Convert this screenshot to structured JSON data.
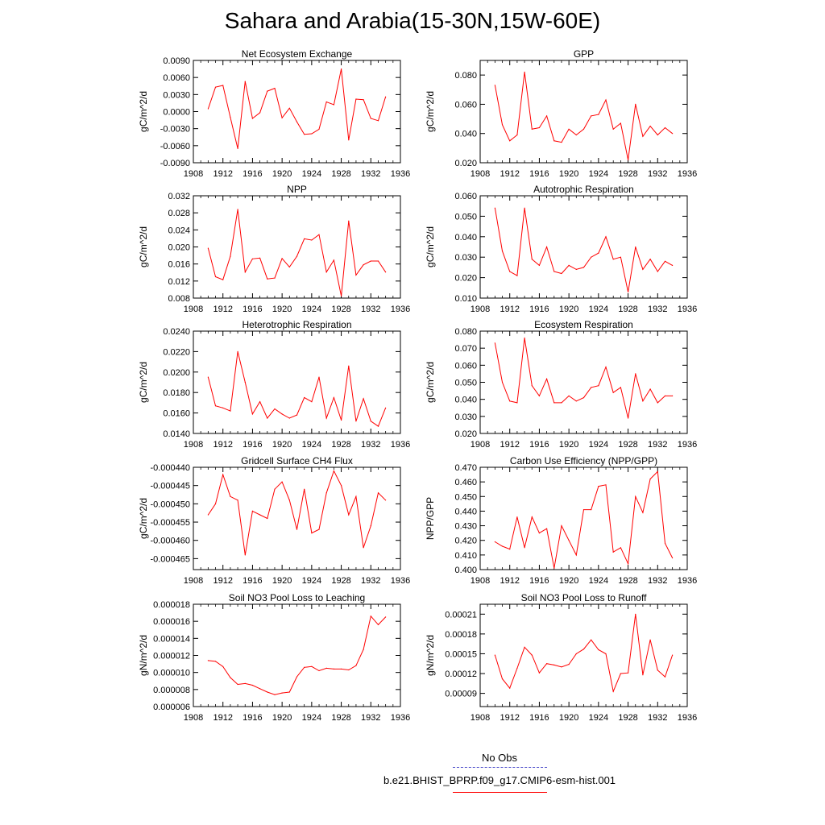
{
  "title": "Sahara and Arabia(15-30N,15W-60E)",
  "legend": {
    "obs_label": "No Obs",
    "model_label": "b.e21.BHIST_BPRP.f09_g17.CMIP6-esm-hist.001",
    "obs_color": "#5555cc",
    "model_color": "#ff0000"
  },
  "chart_data": [
    {
      "type": "line",
      "title": "Net Ecosystem Exchange",
      "ylabel": "gC/m^2/d",
      "xlim": [
        1908,
        1936
      ],
      "xticks": [
        "1908",
        "1912",
        "1916",
        "1920",
        "1924",
        "1928",
        "1932",
        "1936"
      ],
      "ylim": [
        -0.009,
        0.009
      ],
      "yticks": [
        "-0.0090",
        "-0.0060",
        "-0.0030",
        "0.0000",
        "0.0030",
        "0.0060",
        "0.0090"
      ],
      "x": [
        1910,
        1911,
        1912,
        1913,
        1914,
        1915,
        1916,
        1917,
        1918,
        1919,
        1920,
        1921,
        1922,
        1923,
        1924,
        1925,
        1926,
        1927,
        1928,
        1929,
        1930,
        1931,
        1932,
        1933,
        1934
      ],
      "series": [
        {
          "color": "#ff0000",
          "values": [
            0.0005,
            0.0043,
            0.0046,
            -0.001,
            -0.0065,
            0.0053,
            -0.0012,
            -0.0002,
            0.0036,
            0.0041,
            -0.0011,
            0.0006,
            -0.0018,
            -0.004,
            -0.0039,
            -0.0031,
            0.0017,
            0.0012,
            0.0075,
            -0.005,
            0.0022,
            0.0021,
            -0.0012,
            -0.0016,
            0.0026
          ]
        }
      ]
    },
    {
      "type": "line",
      "title": "GPP",
      "ylabel": "gC/m^2/d",
      "xlim": [
        1908,
        1936
      ],
      "xticks": [
        "1908",
        "1912",
        "1916",
        "1920",
        "1924",
        "1928",
        "1932",
        "1936"
      ],
      "ylim": [
        0.02,
        0.09
      ],
      "yticks": [
        "0.020",
        "0.040",
        "0.060",
        "0.080"
      ],
      "x": [
        1910,
        1911,
        1912,
        1913,
        1914,
        1915,
        1916,
        1917,
        1918,
        1919,
        1920,
        1921,
        1922,
        1923,
        1924,
        1925,
        1926,
        1927,
        1928,
        1929,
        1930,
        1931,
        1932,
        1933,
        1934
      ],
      "series": [
        {
          "color": "#ff0000",
          "values": [
            0.073,
            0.046,
            0.035,
            0.039,
            0.082,
            0.043,
            0.044,
            0.052,
            0.035,
            0.034,
            0.043,
            0.039,
            0.043,
            0.052,
            0.053,
            0.063,
            0.043,
            0.047,
            0.022,
            0.06,
            0.038,
            0.045,
            0.039,
            0.044,
            0.04
          ]
        }
      ]
    },
    {
      "type": "line",
      "title": "NPP",
      "ylabel": "gC/m^2/d",
      "xlim": [
        1908,
        1936
      ],
      "xticks": [
        "1908",
        "1912",
        "1916",
        "1920",
        "1924",
        "1928",
        "1932",
        "1936"
      ],
      "ylim": [
        0.008,
        0.032
      ],
      "yticks": [
        "0.008",
        "0.012",
        "0.016",
        "0.020",
        "0.024",
        "0.028",
        "0.032"
      ],
      "x": [
        1910,
        1911,
        1912,
        1913,
        1914,
        1915,
        1916,
        1917,
        1918,
        1919,
        1920,
        1921,
        1922,
        1923,
        1924,
        1925,
        1926,
        1927,
        1928,
        1929,
        1930,
        1931,
        1932,
        1933,
        1934
      ],
      "series": [
        {
          "color": "#ff0000",
          "values": [
            0.0197,
            0.013,
            0.0123,
            0.0178,
            0.0288,
            0.0141,
            0.0172,
            0.0174,
            0.0125,
            0.0127,
            0.0173,
            0.0153,
            0.0178,
            0.0219,
            0.0216,
            0.0229,
            0.0141,
            0.0169,
            0.0085,
            0.0261,
            0.0134,
            0.0158,
            0.0167,
            0.0167,
            0.0141
          ]
        }
      ]
    },
    {
      "type": "line",
      "title": "Autotrophic Respiration",
      "ylabel": "gC/m^2/d",
      "xlim": [
        1908,
        1936
      ],
      "xticks": [
        "1908",
        "1912",
        "1916",
        "1920",
        "1924",
        "1928",
        "1932",
        "1936"
      ],
      "ylim": [
        0.01,
        0.06
      ],
      "yticks": [
        "0.010",
        "0.020",
        "0.030",
        "0.040",
        "0.050",
        "0.060"
      ],
      "x": [
        1910,
        1911,
        1912,
        1913,
        1914,
        1915,
        1916,
        1917,
        1918,
        1919,
        1920,
        1921,
        1922,
        1923,
        1924,
        1925,
        1926,
        1927,
        1928,
        1929,
        1930,
        1931,
        1932,
        1933,
        1934
      ],
      "series": [
        {
          "color": "#ff0000",
          "values": [
            0.054,
            0.033,
            0.023,
            0.021,
            0.054,
            0.029,
            0.026,
            0.035,
            0.023,
            0.022,
            0.026,
            0.024,
            0.025,
            0.03,
            0.032,
            0.04,
            0.029,
            0.03,
            0.013,
            0.035,
            0.024,
            0.029,
            0.023,
            0.028,
            0.026
          ]
        }
      ]
    },
    {
      "type": "line",
      "title": "Heterotrophic Respiration",
      "ylabel": "gC/m^2/d",
      "xlim": [
        1908,
        1936
      ],
      "xticks": [
        "1908",
        "1912",
        "1916",
        "1920",
        "1924",
        "1928",
        "1932",
        "1936"
      ],
      "ylim": [
        0.014,
        0.024
      ],
      "yticks": [
        "0.0140",
        "0.0160",
        "0.0180",
        "0.0200",
        "0.0220",
        "0.0240"
      ],
      "x": [
        1910,
        1911,
        1912,
        1913,
        1914,
        1915,
        1916,
        1917,
        1918,
        1919,
        1920,
        1921,
        1922,
        1923,
        1924,
        1925,
        1926,
        1927,
        1928,
        1929,
        1930,
        1931,
        1932,
        1933,
        1934
      ],
      "series": [
        {
          "color": "#ff0000",
          "values": [
            0.0195,
            0.0167,
            0.0165,
            0.0162,
            0.022,
            0.019,
            0.0159,
            0.0171,
            0.0155,
            0.0164,
            0.0159,
            0.0155,
            0.0158,
            0.0175,
            0.0171,
            0.0195,
            0.0155,
            0.0175,
            0.0153,
            0.0206,
            0.0152,
            0.0174,
            0.0152,
            0.0147,
            0.0165
          ]
        }
      ]
    },
    {
      "type": "line",
      "title": "Ecosystem Respiration",
      "ylabel": "gC/m^2/d",
      "xlim": [
        1908,
        1936
      ],
      "xticks": [
        "1908",
        "1912",
        "1916",
        "1920",
        "1924",
        "1928",
        "1932",
        "1936"
      ],
      "ylim": [
        0.02,
        0.08
      ],
      "yticks": [
        "0.020",
        "0.030",
        "0.040",
        "0.050",
        "0.060",
        "0.070",
        "0.080"
      ],
      "x": [
        1910,
        1911,
        1912,
        1913,
        1914,
        1915,
        1916,
        1917,
        1918,
        1919,
        1920,
        1921,
        1922,
        1923,
        1924,
        1925,
        1926,
        1927,
        1928,
        1929,
        1930,
        1931,
        1932,
        1933,
        1934
      ],
      "series": [
        {
          "color": "#ff0000",
          "values": [
            0.073,
            0.05,
            0.039,
            0.038,
            0.076,
            0.048,
            0.042,
            0.052,
            0.038,
            0.038,
            0.042,
            0.039,
            0.041,
            0.047,
            0.048,
            0.059,
            0.044,
            0.047,
            0.029,
            0.055,
            0.039,
            0.046,
            0.038,
            0.042,
            0.042
          ]
        }
      ]
    },
    {
      "type": "line",
      "title": "Gridcell Surface CH4 Flux",
      "ylabel": "gC/m^2/d",
      "xlim": [
        1908,
        1936
      ],
      "xticks": [
        "1908",
        "1912",
        "1916",
        "1920",
        "1924",
        "1928",
        "1932",
        "1936"
      ],
      "ylim": [
        -0.000468,
        -0.00044
      ],
      "yticks": [
        "-0.000440",
        "-0.000445",
        "-0.000450",
        "-0.000455",
        "-0.000460",
        "-0.000465"
      ],
      "x": [
        1910,
        1911,
        1912,
        1913,
        1914,
        1915,
        1916,
        1917,
        1918,
        1919,
        1920,
        1921,
        1922,
        1923,
        1924,
        1925,
        1926,
        1927,
        1928,
        1929,
        1930,
        1931,
        1932,
        1933,
        1934
      ],
      "series": [
        {
          "color": "#ff0000",
          "values": [
            -0.000453,
            -0.00045,
            -0.000442,
            -0.000448,
            -0.000449,
            -0.000464,
            -0.000452,
            -0.000453,
            -0.000454,
            -0.000446,
            -0.000444,
            -0.000449,
            -0.000457,
            -0.000446,
            -0.000458,
            -0.000457,
            -0.000447,
            -0.000441,
            -0.000445,
            -0.000453,
            -0.000448,
            -0.000462,
            -0.000456,
            -0.000447,
            -0.000449
          ]
        }
      ]
    },
    {
      "type": "line",
      "title": "Carbon Use Efficiency (NPP/GPP)",
      "ylabel": "NPP/GPP",
      "xlim": [
        1908,
        1936
      ],
      "xticks": [
        "1908",
        "1912",
        "1916",
        "1920",
        "1924",
        "1928",
        "1932",
        "1936"
      ],
      "ylim": [
        0.4,
        0.47
      ],
      "yticks": [
        "0.400",
        "0.410",
        "0.420",
        "0.430",
        "0.440",
        "0.450",
        "0.460",
        "0.470"
      ],
      "x": [
        1910,
        1911,
        1912,
        1913,
        1914,
        1915,
        1916,
        1917,
        1918,
        1919,
        1920,
        1921,
        1922,
        1923,
        1924,
        1925,
        1926,
        1927,
        1928,
        1929,
        1930,
        1931,
        1932,
        1933,
        1934
      ],
      "series": [
        {
          "color": "#ff0000",
          "values": [
            0.419,
            0.416,
            0.414,
            0.436,
            0.415,
            0.436,
            0.425,
            0.428,
            0.401,
            0.43,
            0.42,
            0.41,
            0.441,
            0.441,
            0.457,
            0.458,
            0.412,
            0.415,
            0.404,
            0.45,
            0.439,
            0.462,
            0.467,
            0.418,
            0.408
          ]
        }
      ]
    },
    {
      "type": "line",
      "title": "Soil NO3 Pool Loss to Leaching",
      "ylabel": "gN/m^2/d",
      "xlim": [
        1908,
        1936
      ],
      "xticks": [
        "1908",
        "1912",
        "1916",
        "1920",
        "1924",
        "1928",
        "1932",
        "1936"
      ],
      "ylim": [
        6e-06,
        1.8e-05
      ],
      "yticks": [
        "0.000006",
        "0.000008",
        "0.000010",
        "0.000012",
        "0.000014",
        "0.000016",
        "0.000018"
      ],
      "x": [
        1910,
        1911,
        1912,
        1913,
        1914,
        1915,
        1916,
        1917,
        1918,
        1919,
        1920,
        1921,
        1922,
        1923,
        1924,
        1925,
        1926,
        1927,
        1928,
        1929,
        1930,
        1931,
        1932,
        1933,
        1934
      ],
      "series": [
        {
          "color": "#ff0000",
          "values": [
            1.14e-05,
            1.13e-05,
            1.07e-05,
            9.4e-06,
            8.6e-06,
            8.7e-06,
            8.5e-06,
            8.1e-06,
            7.7e-06,
            7.4e-06,
            7.6e-06,
            7.7e-06,
            9.5e-06,
            1.06e-05,
            1.07e-05,
            1.02e-05,
            1.05e-05,
            1.04e-05,
            1.04e-05,
            1.03e-05,
            1.08e-05,
            1.27e-05,
            1.66e-05,
            1.56e-05,
            1.65e-05
          ]
        }
      ]
    },
    {
      "type": "line",
      "title": "Soil NO3 Pool Loss to Runoff",
      "ylabel": "gN/m^2/d",
      "xlim": [
        1908,
        1936
      ],
      "xticks": [
        "1908",
        "1912",
        "1916",
        "1920",
        "1924",
        "1928",
        "1932",
        "1936"
      ],
      "ylim": [
        7e-05,
        0.000225
      ],
      "yticks": [
        "0.00009",
        "0.00012",
        "0.00015",
        "0.00018",
        "0.00021"
      ],
      "x": [
        1910,
        1911,
        1912,
        1913,
        1914,
        1915,
        1916,
        1917,
        1918,
        1919,
        1920,
        1921,
        1922,
        1923,
        1924,
        1925,
        1926,
        1927,
        1928,
        1929,
        1930,
        1931,
        1932,
        1933,
        1934
      ],
      "series": [
        {
          "color": "#ff0000",
          "values": [
            0.000148,
            0.000112,
            9.8e-05,
            0.000128,
            0.00016,
            0.000148,
            0.000121,
            0.000135,
            0.000133,
            0.00013,
            0.000134,
            0.00015,
            0.000157,
            0.000171,
            0.000156,
            0.00015,
            9.3e-05,
            0.00012,
            0.000121,
            0.00021,
            0.000118,
            0.000171,
            0.000125,
            0.000115,
            0.000148
          ]
        }
      ]
    }
  ]
}
